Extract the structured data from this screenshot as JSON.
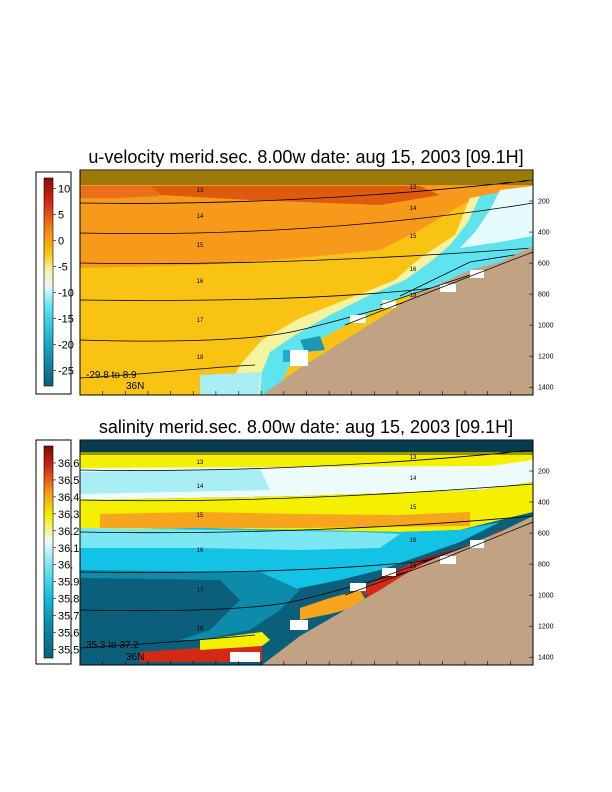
{
  "chart_data": [
    {
      "type": "heatmap",
      "title": "u-velocity merid.sec.  8.00w   date: aug 15, 2003   [09.1H]",
      "colorbar": {
        "ticks": [
          "10",
          "5",
          "0",
          "-5",
          "-10",
          "-15",
          "-20",
          "-25"
        ],
        "tick_values": [
          10,
          5,
          0,
          -5,
          -10,
          -15,
          -20,
          -25
        ],
        "range": [
          -28,
          12
        ]
      },
      "depth_ticks": [
        "200",
        "400",
        "600",
        "800",
        "1000",
        "1200",
        "1400"
      ],
      "depth_values": [
        200,
        400,
        600,
        800,
        1000,
        1200,
        1400
      ],
      "depth_range": [
        0,
        1450
      ],
      "layer_labels": [
        "13",
        "14",
        "15",
        "16",
        "17",
        "18",
        "13",
        "14",
        "15",
        "16",
        "19"
      ],
      "range_text": "-29.8 to   8.9",
      "latitude_label": "36N",
      "colors": {
        "strong_pos": "#de5a0e",
        "pos": "#f79a1c",
        "weak_pos": "#f8c312",
        "zero": "#f5f2a0",
        "neg": "#5fe4ef",
        "strong_neg": "#1a98b5",
        "terrain": "#c1a283"
      }
    },
    {
      "type": "heatmap",
      "title": "salinity merid.sec.  8.00w    date: aug 15, 2003   [09.1H]",
      "colorbar": {
        "ticks": [
          "36.6",
          "36.5",
          "36.4",
          "36.3",
          "36.2",
          "36.1",
          "36.",
          "35.9",
          "35.8",
          "35.7",
          "35.6",
          "35.5"
        ],
        "tick_values": [
          36.6,
          36.5,
          36.4,
          36.3,
          36.2,
          36.1,
          36.0,
          35.9,
          35.8,
          35.7,
          35.6,
          35.5
        ],
        "range": [
          35.45,
          36.7
        ]
      },
      "depth_ticks": [
        "200",
        "400",
        "600",
        "800",
        "1000",
        "1200",
        "1400"
      ],
      "depth_values": [
        200,
        400,
        600,
        800,
        1000,
        1200,
        1400
      ],
      "depth_range": [
        0,
        1450
      ],
      "layer_labels": [
        "13",
        "14",
        "15",
        "16",
        "17",
        "18",
        "13",
        "14",
        "15",
        "16",
        "19"
      ],
      "range_text": "35.3 to  37.2",
      "latitude_label": "36N",
      "colors": {
        "high": "#a00d0d",
        "mid_high": "#f7a51c",
        "mid": "#f5f100",
        "mid_low": "#cff6f8",
        "low_mid": "#13c3e6",
        "low": "#0b5f7a",
        "terrain": "#c1a283"
      }
    }
  ]
}
